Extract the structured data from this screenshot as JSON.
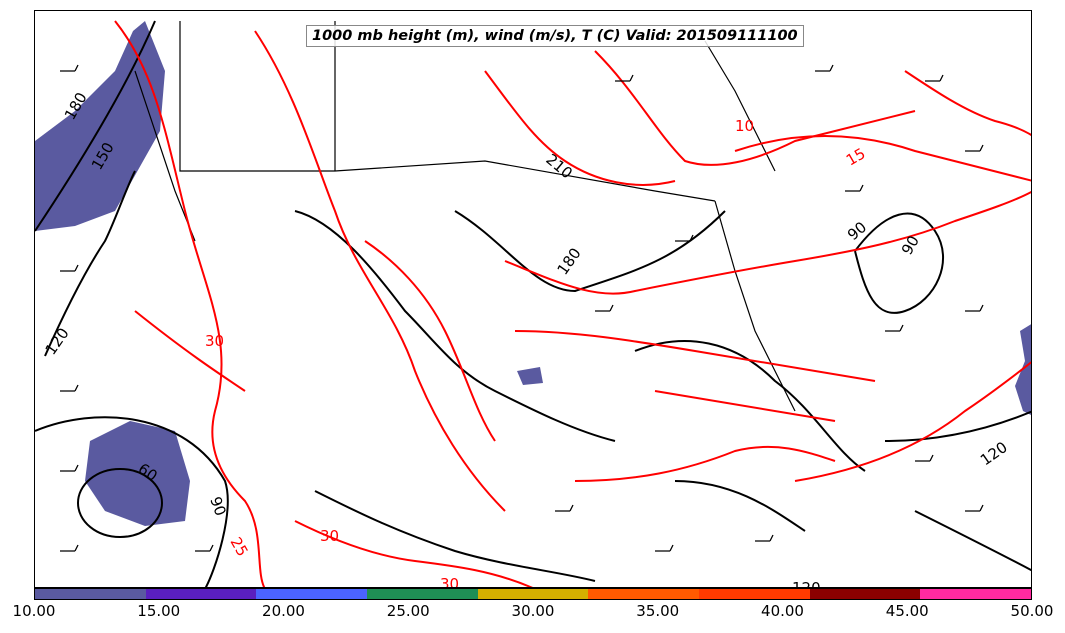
{
  "title": "1000 mb height (m), wind (m/s), T (C) Valid: 201509111100",
  "colorbar": {
    "ticks": [
      "10.00",
      "15.00",
      "20.00",
      "25.00",
      "30.00",
      "35.00",
      "40.00",
      "45.00",
      "50.00"
    ],
    "colors": [
      "#5a5aa0",
      "#5a1fbf",
      "#4b63ff",
      "#1f8f55",
      "#d4b000",
      "#ff5a00",
      "#ff3a00",
      "#8b0000",
      "#ff2aa0"
    ]
  },
  "height_labels": [
    "180",
    "150",
    "120",
    "60",
    "90",
    "210",
    "180",
    "90",
    "90",
    "120",
    "120"
  ],
  "temp_labels": [
    "10",
    "15",
    "30",
    "30",
    "25",
    "30"
  ],
  "colors": {
    "height_contour": "#000000",
    "temp_contour": "#ff0000",
    "wind_fill": "#5a5aa0"
  }
}
